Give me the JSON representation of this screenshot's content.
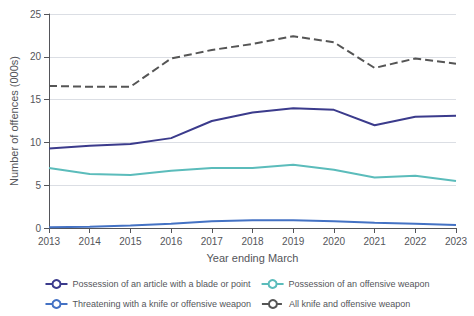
{
  "chart_data": {
    "type": "line",
    "xlabel": "Year ending March",
    "ylabel": "Number of offences (000s)",
    "x": [
      2013,
      2014,
      2015,
      2016,
      2017,
      2018,
      2019,
      2020,
      2021,
      2022,
      2023
    ],
    "xlim": [
      2013,
      2023
    ],
    "xticks": [
      2013,
      2014,
      2015,
      2016,
      2017,
      2018,
      2019,
      2020,
      2021,
      2022,
      2023
    ],
    "ylim": [
      0,
      25
    ],
    "yticks": [
      0,
      5,
      10,
      15,
      20,
      25
    ],
    "grid": true,
    "legend": "bottom",
    "series": [
      {
        "name": "Possession of an article with a blade or point",
        "color": "#3b3b8c",
        "line_style": "solid",
        "values": [
          9.3,
          9.6,
          9.8,
          10.5,
          12.5,
          13.5,
          14.0,
          13.8,
          12.0,
          13.0,
          13.1
        ]
      },
      {
        "name": "Possession of an offensive weapon",
        "color": "#5bbcbb",
        "line_style": "solid",
        "values": [
          7.0,
          6.3,
          6.2,
          6.7,
          7.0,
          7.0,
          7.4,
          6.8,
          5.9,
          6.1,
          5.5
        ]
      },
      {
        "name": "Threatening with a knife or offensive weapon",
        "color": "#4472c4",
        "line_style": "solid",
        "values": [
          0.1,
          0.15,
          0.3,
          0.5,
          0.8,
          0.9,
          0.9,
          0.8,
          0.6,
          0.5,
          0.35
        ]
      },
      {
        "name": "All knife and offensive weapon",
        "color": "#555555",
        "line_style": "dashed",
        "values": [
          16.6,
          16.5,
          16.5,
          19.8,
          20.8,
          21.5,
          22.4,
          21.7,
          18.7,
          19.8,
          19.2
        ]
      }
    ]
  }
}
